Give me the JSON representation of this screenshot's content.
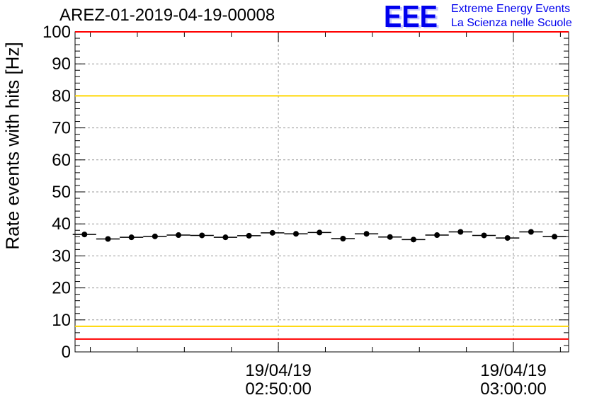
{
  "title": "AREZ-01-2019-04-19-00008",
  "logo": {
    "mark": "EEE",
    "line1": "Extreme Energy Events",
    "line2": "La Scienza nelle Scuole",
    "color": "#0000ee"
  },
  "chart_data": {
    "type": "scatter",
    "ylabel": "Rate events with hits [Hz]",
    "ylim": [
      0,
      100
    ],
    "yticks": [
      0,
      10,
      20,
      30,
      40,
      50,
      60,
      70,
      80,
      90,
      100
    ],
    "xlim_minutes": [
      41.35,
      62.35
    ],
    "xticks": [
      {
        "minute": 50,
        "date": "19/04/19",
        "time": "02:50:00"
      },
      {
        "minute": 60,
        "date": "19/04/19",
        "time": "03:00:00"
      }
    ],
    "bin_width_minutes": 1,
    "grid": true,
    "points": {
      "x_minutes": [
        41.75,
        42.75,
        43.75,
        44.75,
        45.75,
        46.75,
        47.75,
        48.75,
        49.75,
        50.75,
        51.75,
        52.75,
        53.75,
        54.75,
        55.75,
        56.75,
        57.75,
        58.75,
        59.75,
        60.75,
        61.75
      ],
      "y": [
        36.7,
        35.3,
        35.8,
        36.1,
        36.5,
        36.4,
        35.8,
        36.3,
        37.2,
        36.9,
        37.3,
        35.4,
        36.9,
        35.9,
        35.1,
        36.5,
        37.5,
        36.4,
        35.6,
        37.5,
        36.0
      ]
    },
    "limits": [
      {
        "y": 100,
        "color": "#ff0000"
      },
      {
        "y": 80,
        "color": "#ffd700"
      },
      {
        "y": 8,
        "color": "#ffd700"
      },
      {
        "y": 4,
        "color": "#ff0000"
      }
    ]
  }
}
